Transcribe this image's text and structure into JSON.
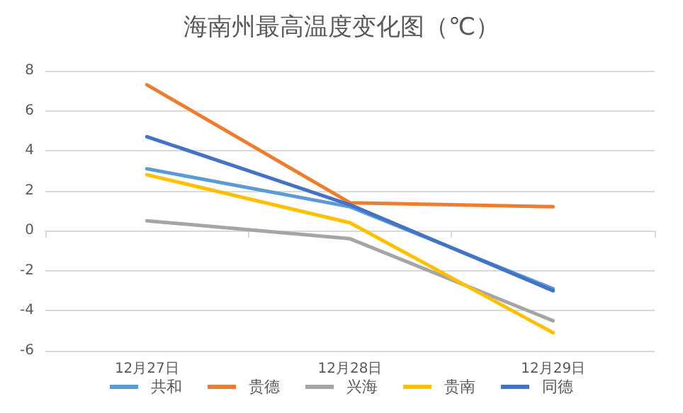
{
  "chart_data": {
    "type": "line",
    "title": "海南州最高温度变化图（℃）",
    "categories": [
      "12月27日",
      "12月28日",
      "12月29日"
    ],
    "series": [
      {
        "name": "共和",
        "color": "#5b9bd5",
        "values": [
          3.1,
          1.2,
          -2.9
        ]
      },
      {
        "name": "贵德",
        "color": "#ed7d31",
        "values": [
          7.3,
          1.4,
          1.2
        ]
      },
      {
        "name": "兴海",
        "color": "#a5a5a5",
        "values": [
          0.5,
          -0.4,
          -4.5
        ]
      },
      {
        "name": "贵南",
        "color": "#ffc000",
        "values": [
          2.8,
          0.4,
          -5.1
        ]
      },
      {
        "name": "同德",
        "color": "#4472c4",
        "values": [
          4.7,
          1.3,
          -3.0
        ]
      }
    ],
    "ylim": [
      -6,
      8
    ],
    "yticks": [
      -6,
      -4,
      -2,
      0,
      2,
      4,
      6,
      8
    ],
    "grid": "y",
    "legend": "bottom",
    "marker": "none",
    "line_style": "solid"
  }
}
